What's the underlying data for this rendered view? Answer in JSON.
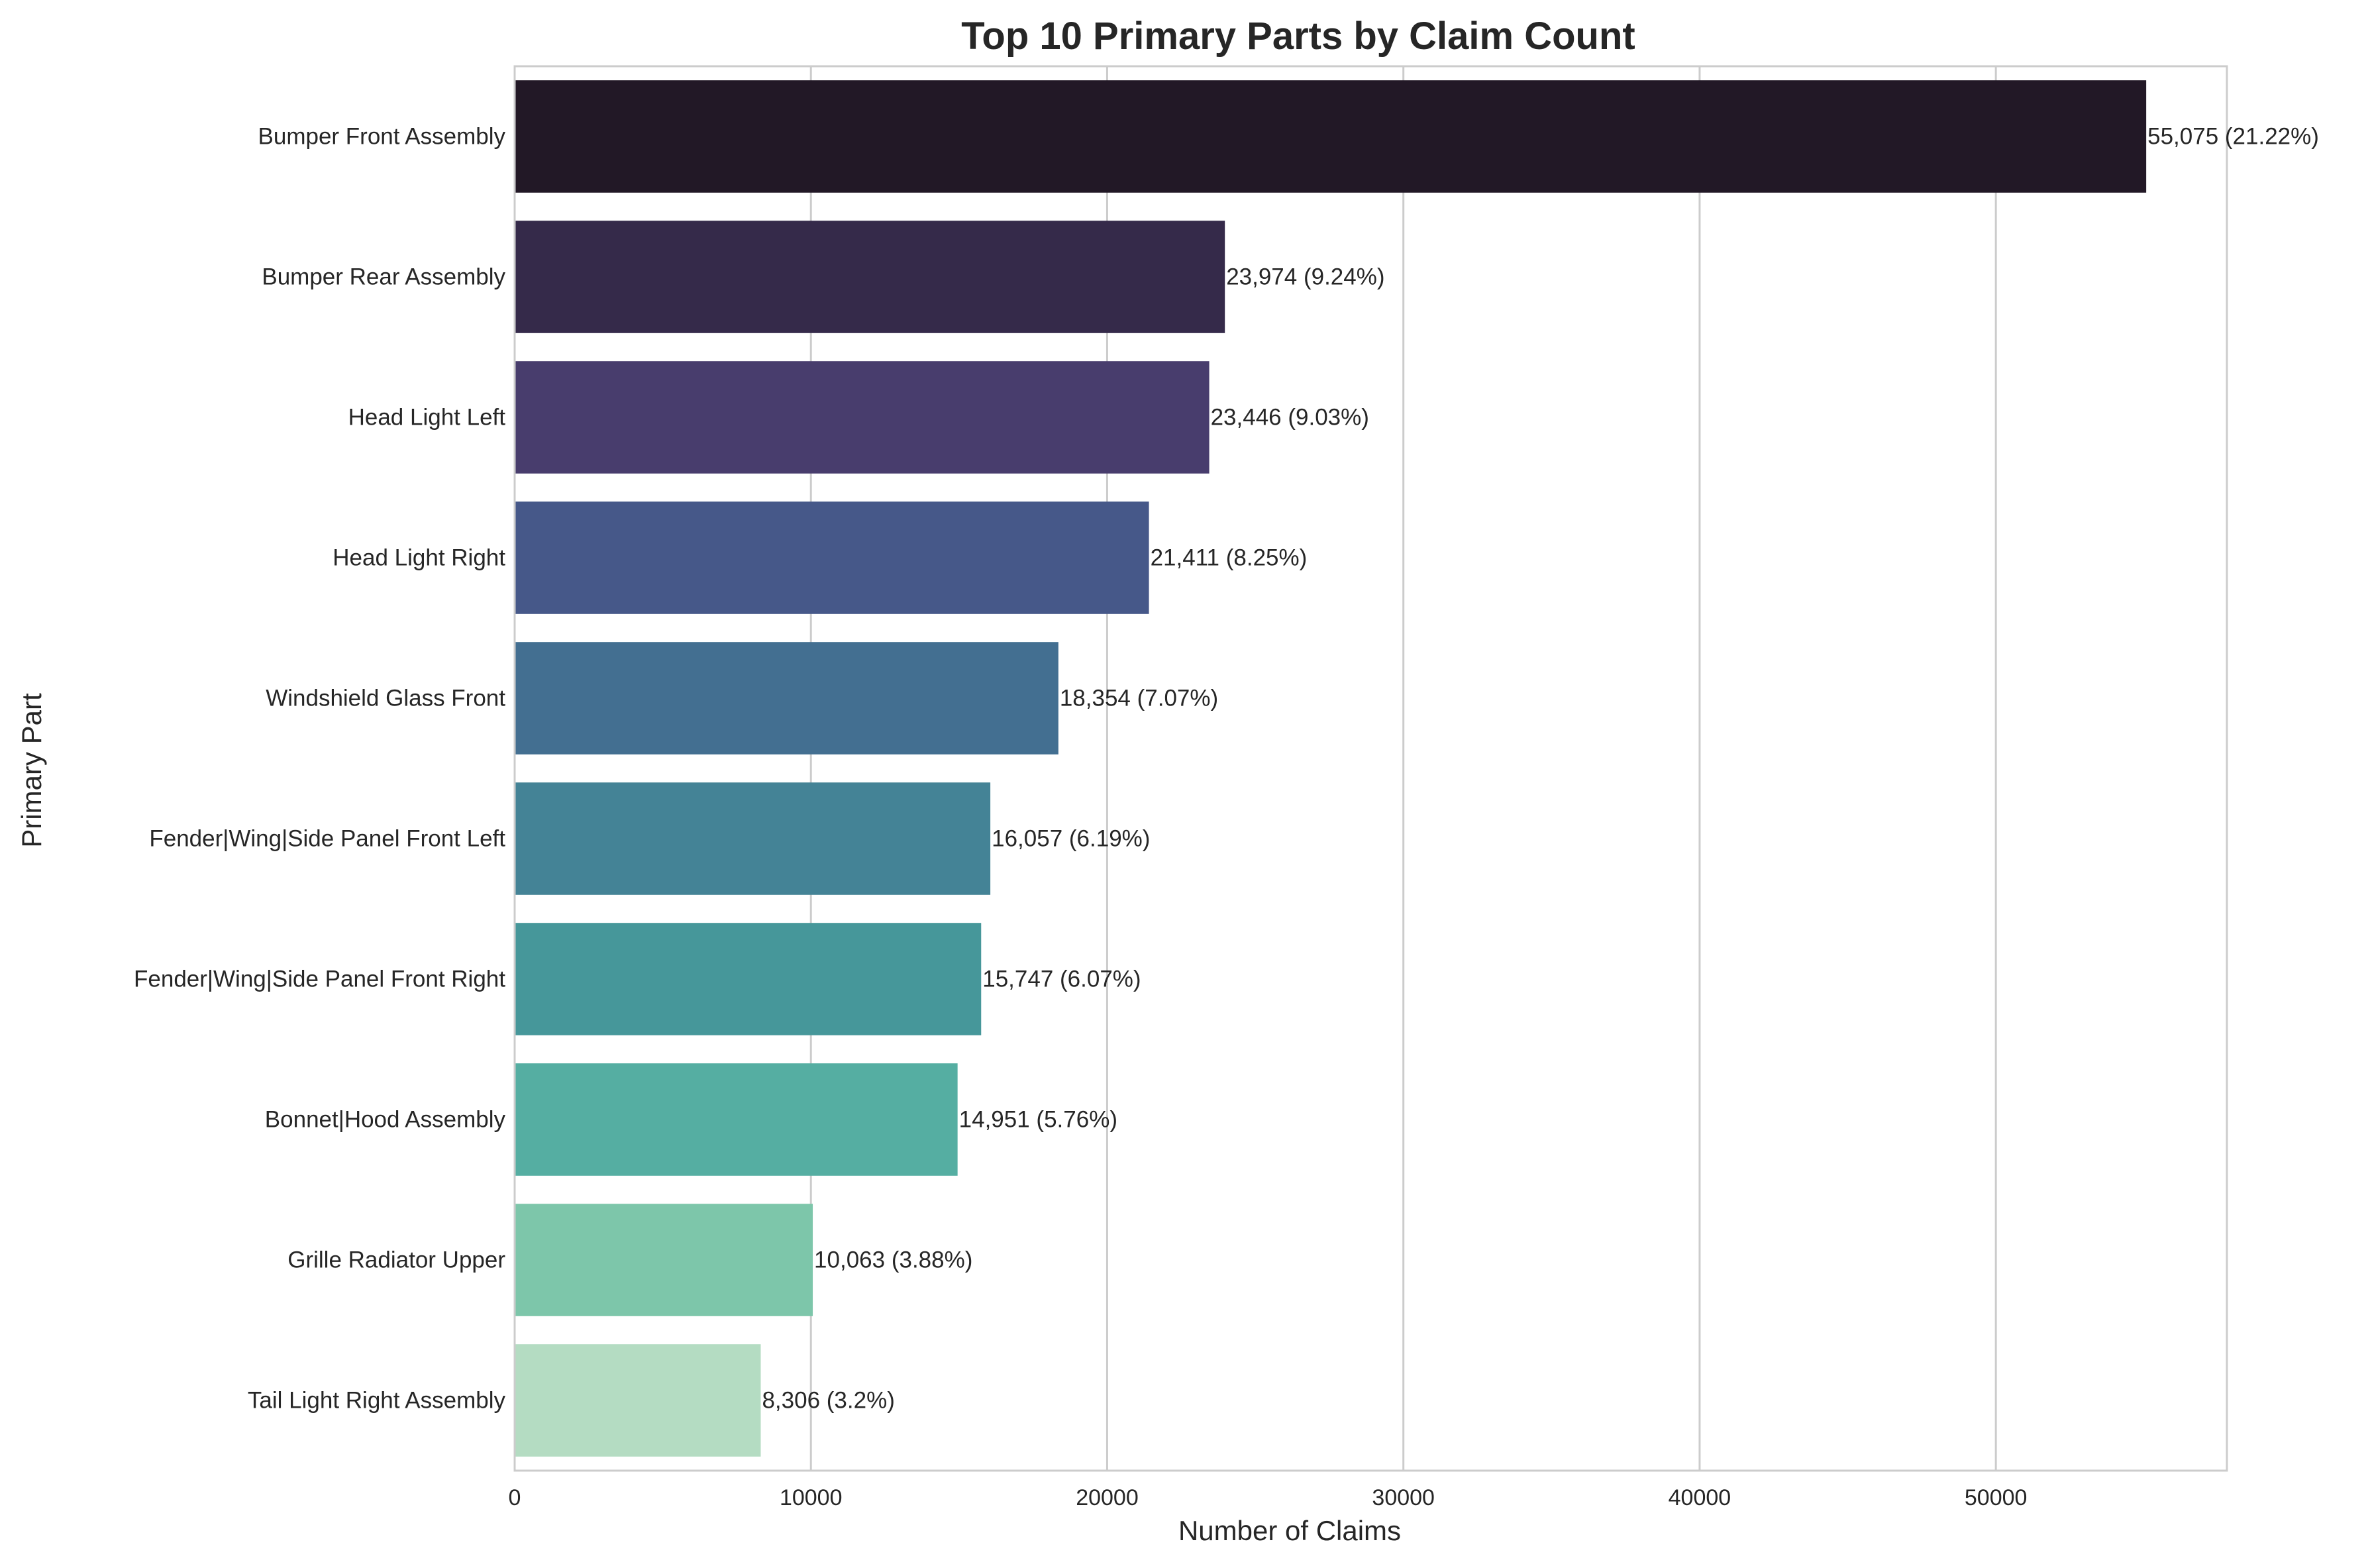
{
  "chart_data": {
    "type": "bar",
    "orientation": "horizontal",
    "title": "Top 10 Primary Parts by Claim Count",
    "xlabel": "Number of Claims",
    "ylabel": "Primary Part",
    "xlim": [
      0,
      57800
    ],
    "xticks": [
      0,
      10000,
      20000,
      30000,
      40000,
      50000
    ],
    "xtick_labels": [
      "0",
      "10000",
      "20000",
      "30000",
      "40000",
      "50000"
    ],
    "grid": true,
    "categories": [
      "Bumper Front Assembly",
      "Bumper Rear Assembly",
      "Head Light Left",
      "Head Light Right",
      "Windshield Glass Front",
      "Fender|Wing|Side Panel Front Left",
      "Fender|Wing|Side Panel Front Right",
      "Bonnet|Hood Assembly",
      "Grille Radiator Upper",
      "Tail Light Right Assembly"
    ],
    "values": [
      55075,
      23974,
      23446,
      21411,
      18354,
      16057,
      15747,
      14951,
      10063,
      8306
    ],
    "data_labels": [
      "55,075 (21.22%)",
      "23,974 (9.24%)",
      "23,446 (9.03%)",
      "21,411 (8.25%)",
      "18,354 (7.07%)",
      "16,057 (6.19%)",
      "15,747 (6.07%)",
      "14,951 (5.76%)",
      "10,063 (3.88%)",
      "8,306 (3.2%)"
    ],
    "colors": [
      "#221826",
      "#352a4a",
      "#483d6d",
      "#465889",
      "#436f91",
      "#448396",
      "#46979a",
      "#55aea2",
      "#7dc6aa",
      "#b4dcc2"
    ],
    "grid_color": "#cccccc",
    "spine_color": "#cccccc"
  }
}
